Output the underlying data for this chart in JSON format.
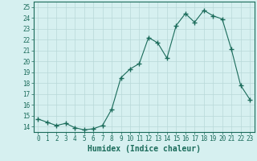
{
  "x": [
    0,
    1,
    2,
    3,
    4,
    5,
    6,
    7,
    8,
    9,
    10,
    11,
    12,
    13,
    14,
    15,
    16,
    17,
    18,
    19,
    20,
    21,
    22,
    23
  ],
  "y": [
    14.7,
    14.4,
    14.1,
    14.3,
    13.9,
    13.7,
    13.8,
    14.1,
    15.6,
    18.5,
    19.3,
    19.8,
    22.2,
    21.7,
    20.3,
    23.3,
    24.4,
    23.6,
    24.7,
    24.2,
    23.9,
    21.1,
    17.8,
    16.5
  ],
  "line_color": "#1a6b5a",
  "marker": "+",
  "marker_size": 4,
  "bg_color": "#d6f0f0",
  "grid_color": "#b8d8d8",
  "xlabel": "Humidex (Indice chaleur)",
  "xlim": [
    -0.5,
    23.5
  ],
  "ylim": [
    13.5,
    25.5
  ],
  "yticks": [
    14,
    15,
    16,
    17,
    18,
    19,
    20,
    21,
    22,
    23,
    24,
    25
  ],
  "xticks": [
    0,
    1,
    2,
    3,
    4,
    5,
    6,
    7,
    8,
    9,
    10,
    11,
    12,
    13,
    14,
    15,
    16,
    17,
    18,
    19,
    20,
    21,
    22,
    23
  ],
  "tick_fontsize": 5.5,
  "label_fontsize": 7.0
}
